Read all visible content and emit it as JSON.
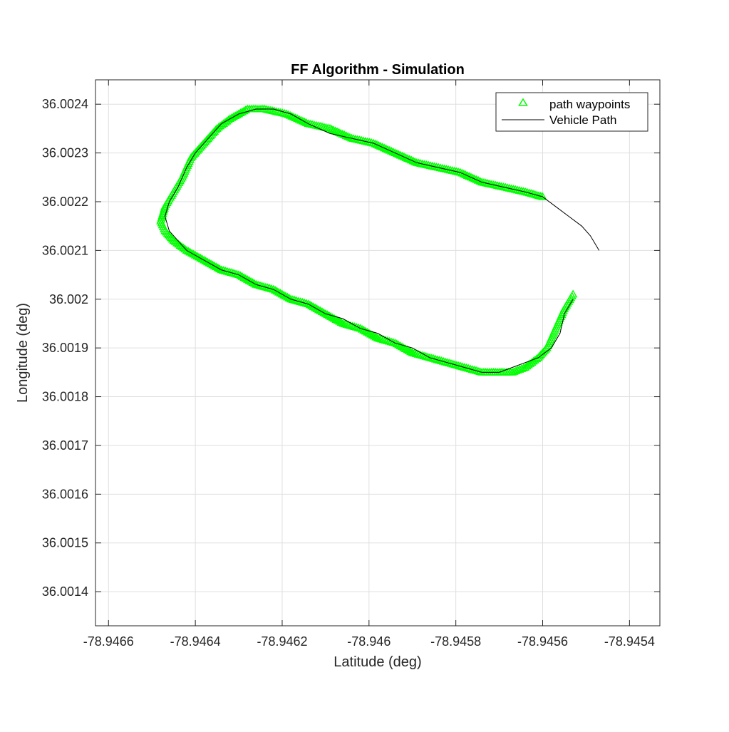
{
  "chart_data": {
    "type": "line",
    "title": "FF Algorithm - Simulation",
    "xlabel": "Latitude (deg)",
    "ylabel": "Longitude (deg)",
    "xlim": [
      -78.94663,
      -78.94533
    ],
    "ylim": [
      36.00133,
      36.00245
    ],
    "xticks": [
      -78.9466,
      -78.9464,
      -78.9462,
      -78.946,
      -78.9458,
      -78.9456,
      -78.9454
    ],
    "xtick_labels": [
      "-78.9466",
      "-78.9464",
      "-78.9462",
      "-78.946",
      "-78.9458",
      "-78.9456",
      "-78.9454"
    ],
    "yticks": [
      36.0014,
      36.0015,
      36.0016,
      36.0017,
      36.0018,
      36.0019,
      36.002,
      36.0021,
      36.0022,
      36.0023,
      36.0024
    ],
    "ytick_labels": [
      "36.0014",
      "36.0015",
      "36.0016",
      "36.0017",
      "36.0018",
      "36.0019",
      "36.002",
      "36.0021",
      "36.0022",
      "36.0023",
      "36.0024"
    ],
    "grid": true,
    "legend_position": "top-right",
    "series": [
      {
        "name": "path waypoints",
        "style": "triangle-markers",
        "color": "#00ff00",
        "points": [
          [
            -78.94553,
            36.00201
          ],
          [
            -78.94555,
            36.00198
          ],
          [
            -78.94557,
            36.00194
          ],
          [
            -78.94559,
            36.0019
          ],
          [
            -78.94561,
            36.00188
          ],
          [
            -78.94564,
            36.00186
          ],
          [
            -78.94567,
            36.00185
          ],
          [
            -78.9457,
            36.00185
          ],
          [
            -78.94574,
            36.00185
          ],
          [
            -78.94578,
            36.00186
          ],
          [
            -78.94582,
            36.00187
          ],
          [
            -78.94586,
            36.00188
          ],
          [
            -78.9459,
            36.00189
          ],
          [
            -78.94594,
            36.00191
          ],
          [
            -78.94598,
            36.00192
          ],
          [
            -78.94602,
            36.00194
          ],
          [
            -78.94606,
            36.00195
          ],
          [
            -78.9461,
            36.00197
          ],
          [
            -78.94614,
            36.00199
          ],
          [
            -78.94618,
            36.002
          ],
          [
            -78.94622,
            36.00202
          ],
          [
            -78.94626,
            36.00203
          ],
          [
            -78.9463,
            36.00205
          ],
          [
            -78.94634,
            36.00206
          ],
          [
            -78.94638,
            36.00208
          ],
          [
            -78.94642,
            36.0021
          ],
          [
            -78.94645,
            36.00212
          ],
          [
            -78.94647,
            36.00214
          ],
          [
            -78.94648,
            36.00216
          ],
          [
            -78.94647,
            36.00219
          ],
          [
            -78.94645,
            36.00222
          ],
          [
            -78.94643,
            36.00225
          ],
          [
            -78.94641,
            36.00229
          ],
          [
            -78.94638,
            36.00232
          ],
          [
            -78.94635,
            36.00235
          ],
          [
            -78.94632,
            36.00237
          ],
          [
            -78.94628,
            36.00239
          ],
          [
            -78.94624,
            36.00239
          ],
          [
            -78.94619,
            36.00238
          ],
          [
            -78.94614,
            36.00236
          ],
          [
            -78.94609,
            36.00235
          ],
          [
            -78.94604,
            36.00233
          ],
          [
            -78.94599,
            36.00232
          ],
          [
            -78.94594,
            36.0023
          ],
          [
            -78.94589,
            36.00228
          ],
          [
            -78.94584,
            36.00227
          ],
          [
            -78.94579,
            36.00226
          ],
          [
            -78.94574,
            36.00224
          ],
          [
            -78.94569,
            36.00223
          ],
          [
            -78.94564,
            36.00222
          ],
          [
            -78.9456,
            36.00221
          ]
        ]
      },
      {
        "name": "Vehicle Path",
        "style": "line",
        "color": "#000000",
        "points": [
          [
            -78.94553,
            36.002
          ],
          [
            -78.94555,
            36.00197
          ],
          [
            -78.94556,
            36.00193
          ],
          [
            -78.94558,
            36.0019
          ],
          [
            -78.94561,
            36.00188
          ],
          [
            -78.94564,
            36.00187
          ],
          [
            -78.94567,
            36.00186
          ],
          [
            -78.9457,
            36.00185
          ],
          [
            -78.94574,
            36.00185
          ],
          [
            -78.94578,
            36.00186
          ],
          [
            -78.94582,
            36.00187
          ],
          [
            -78.94586,
            36.00188
          ],
          [
            -78.9459,
            36.0019
          ],
          [
            -78.94594,
            36.00191
          ],
          [
            -78.94598,
            36.00193
          ],
          [
            -78.94602,
            36.00194
          ],
          [
            -78.94606,
            36.00196
          ],
          [
            -78.9461,
            36.00197
          ],
          [
            -78.94614,
            36.00199
          ],
          [
            -78.94618,
            36.002
          ],
          [
            -78.94622,
            36.00202
          ],
          [
            -78.94626,
            36.00203
          ],
          [
            -78.9463,
            36.00205
          ],
          [
            -78.94634,
            36.00206
          ],
          [
            -78.94638,
            36.00208
          ],
          [
            -78.94642,
            36.0021
          ],
          [
            -78.94644,
            36.00212
          ],
          [
            -78.94646,
            36.00214
          ],
          [
            -78.94647,
            36.00217
          ],
          [
            -78.94646,
            36.0022
          ],
          [
            -78.94644,
            36.00223
          ],
          [
            -78.94642,
            36.00227
          ],
          [
            -78.9464,
            36.0023
          ],
          [
            -78.94637,
            36.00233
          ],
          [
            -78.94634,
            36.00236
          ],
          [
            -78.9463,
            36.00238
          ],
          [
            -78.94626,
            36.00239
          ],
          [
            -78.94622,
            36.00239
          ],
          [
            -78.94618,
            36.00238
          ],
          [
            -78.94614,
            36.00236
          ],
          [
            -78.94609,
            36.00234
          ],
          [
            -78.94604,
            36.00233
          ],
          [
            -78.94599,
            36.00232
          ],
          [
            -78.94594,
            36.0023
          ],
          [
            -78.94589,
            36.00228
          ],
          [
            -78.94584,
            36.00227
          ],
          [
            -78.94579,
            36.00226
          ],
          [
            -78.94574,
            36.00224
          ],
          [
            -78.94569,
            36.00223
          ],
          [
            -78.94564,
            36.00222
          ],
          [
            -78.9456,
            36.00221
          ],
          [
            -78.94557,
            36.00219
          ],
          [
            -78.94554,
            36.00217
          ],
          [
            -78.94551,
            36.00215
          ],
          [
            -78.94549,
            36.00213
          ],
          [
            -78.94547,
            36.0021
          ]
        ]
      }
    ]
  }
}
